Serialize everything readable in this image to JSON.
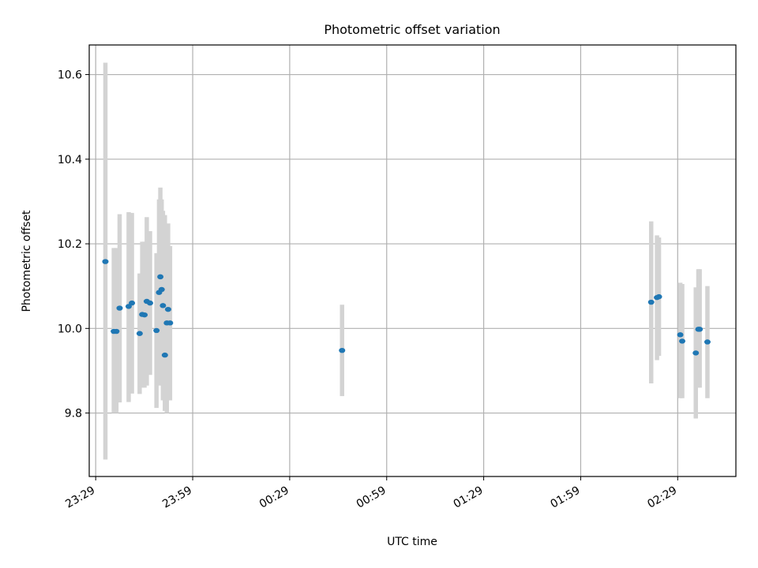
{
  "chart_data": {
    "type": "scatter",
    "title": "Photometric offset variation",
    "xlabel": "UTC time",
    "ylabel": "Photometric offset",
    "x_axis_type": "time",
    "xlim": [
      "23:27",
      "02:47"
    ],
    "ylim": [
      9.65,
      10.67
    ],
    "x_ticks": [
      {
        "time": "23:29",
        "label": "23:29"
      },
      {
        "time": "23:59",
        "label": "23:59"
      },
      {
        "time": "00:29",
        "label": "00:29"
      },
      {
        "time": "00:59",
        "label": "00:59"
      },
      {
        "time": "01:29",
        "label": "01:29"
      },
      {
        "time": "01:59",
        "label": "01:59"
      },
      {
        "time": "02:29",
        "label": "02:29"
      }
    ],
    "y_ticks": [
      {
        "value": 9.8,
        "label": "9.8"
      },
      {
        "value": 10.0,
        "label": "10.0"
      },
      {
        "value": 10.2,
        "label": "10.2"
      },
      {
        "value": 10.4,
        "label": "10.4"
      },
      {
        "value": 10.6,
        "label": "10.6"
      }
    ],
    "grid": true,
    "colors": {
      "points": "#1f77b4",
      "error_bars": "#d3d3d3"
    },
    "points": [
      {
        "time": "23:32:00",
        "y": 10.158,
        "err_low": 9.69,
        "err_high": 10.628
      },
      {
        "time": "23:34:36",
        "y": 9.993,
        "err_low": 9.8,
        "err_high": 10.19
      },
      {
        "time": "23:35:24",
        "y": 9.993,
        "err_low": 9.8,
        "err_high": 10.19
      },
      {
        "time": "23:36:24",
        "y": 10.048,
        "err_low": 9.825,
        "err_high": 10.27
      },
      {
        "time": "23:39:12",
        "y": 10.052,
        "err_low": 9.826,
        "err_high": 10.275
      },
      {
        "time": "23:40:12",
        "y": 10.06,
        "err_low": 9.846,
        "err_high": 10.273
      },
      {
        "time": "23:42:36",
        "y": 9.988,
        "err_low": 9.845,
        "err_high": 10.13
      },
      {
        "time": "23:43:24",
        "y": 10.033,
        "err_low": 9.86,
        "err_high": 10.205
      },
      {
        "time": "23:44:06",
        "y": 10.032,
        "err_low": 9.86,
        "err_high": 10.205
      },
      {
        "time": "23:44:48",
        "y": 10.064,
        "err_low": 9.865,
        "err_high": 10.263
      },
      {
        "time": "23:45:48",
        "y": 10.06,
        "err_low": 9.89,
        "err_high": 10.23
      },
      {
        "time": "23:47:48",
        "y": 9.995,
        "err_low": 9.812,
        "err_high": 10.178
      },
      {
        "time": "23:48:36",
        "y": 10.085,
        "err_low": 9.865,
        "err_high": 10.305
      },
      {
        "time": "23:49:00",
        "y": 10.122,
        "err_low": 9.91,
        "err_high": 10.333
      },
      {
        "time": "23:49:24",
        "y": 10.092,
        "err_low": 9.88,
        "err_high": 10.305
      },
      {
        "time": "23:49:48",
        "y": 10.054,
        "err_low": 9.83,
        "err_high": 10.278
      },
      {
        "time": "23:50:24",
        "y": 9.937,
        "err_low": 9.805,
        "err_high": 10.268
      },
      {
        "time": "23:51:00",
        "y": 10.013,
        "err_low": 9.8,
        "err_high": 10.225
      },
      {
        "time": "23:51:24",
        "y": 10.045,
        "err_low": 9.84,
        "err_high": 10.248
      },
      {
        "time": "23:52:00",
        "y": 10.013,
        "err_low": 9.83,
        "err_high": 10.195
      },
      {
        "time": "00:45:12",
        "y": 9.948,
        "err_low": 9.84,
        "err_high": 10.056
      },
      {
        "time": "02:20:48",
        "y": 10.062,
        "err_low": 9.87,
        "err_high": 10.253
      },
      {
        "time": "02:22:36",
        "y": 10.073,
        "err_low": 9.925,
        "err_high": 10.22
      },
      {
        "time": "02:23:12",
        "y": 10.075,
        "err_low": 9.935,
        "err_high": 10.215
      },
      {
        "time": "02:29:48",
        "y": 9.985,
        "err_low": 9.835,
        "err_high": 10.108
      },
      {
        "time": "02:30:24",
        "y": 9.97,
        "err_low": 9.835,
        "err_high": 10.105
      },
      {
        "time": "02:34:36",
        "y": 9.942,
        "err_low": 9.787,
        "err_high": 10.097
      },
      {
        "time": "02:35:24",
        "y": 9.998,
        "err_low": 9.86,
        "err_high": 10.14
      },
      {
        "time": "02:35:48",
        "y": 9.998,
        "err_low": 9.86,
        "err_high": 10.14
      },
      {
        "time": "02:38:12",
        "y": 9.968,
        "err_low": 9.835,
        "err_high": 10.1
      }
    ]
  }
}
